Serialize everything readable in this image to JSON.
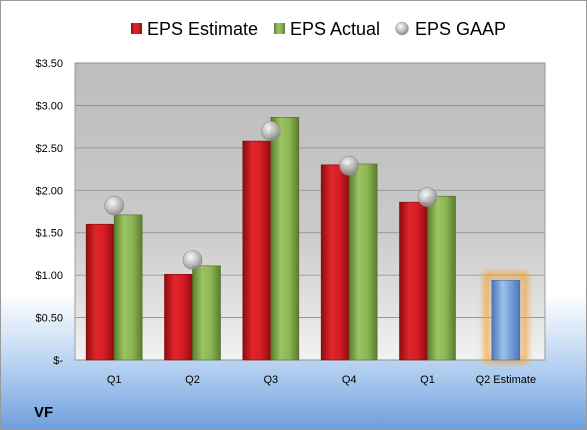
{
  "company_label": "VF",
  "legend": {
    "estimate": "EPS Estimate",
    "actual": "EPS Actual",
    "gaap": "EPS GAAP"
  },
  "colors": {
    "estimate": "#c0131a",
    "actual": "#7aa04a",
    "gaap": "#b5b5b5",
    "future_estimate": "#6f9fdc",
    "future_glow": "#f0a23c"
  },
  "chart_data": {
    "type": "bar",
    "categories": [
      "Q1",
      "Q2",
      "Q3",
      "Q4",
      "Q1",
      "Q2 Estimate"
    ],
    "series": [
      {
        "name": "EPS Estimate",
        "values": [
          1.6,
          1.01,
          2.58,
          2.3,
          1.86,
          0.94
        ]
      },
      {
        "name": "EPS Actual",
        "values": [
          1.71,
          1.11,
          2.86,
          2.31,
          1.93,
          null
        ]
      },
      {
        "name": "EPS GAAP",
        "values": [
          1.82,
          1.18,
          2.7,
          2.29,
          1.92,
          null
        ]
      }
    ],
    "y_ticks": [
      "$-",
      "$0.50",
      "$1.00",
      "$1.50",
      "$2.00",
      "$2.50",
      "$3.00",
      "$3.50"
    ],
    "ylim": [
      0,
      3.5
    ],
    "grid": true,
    "legend_position": "top"
  }
}
